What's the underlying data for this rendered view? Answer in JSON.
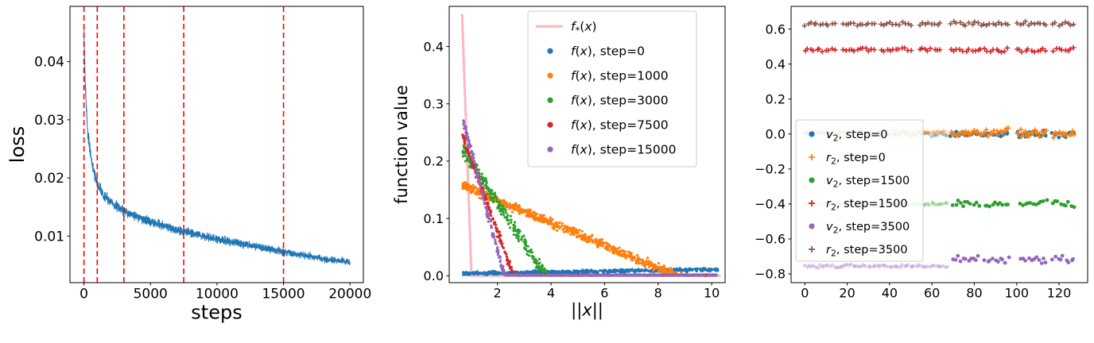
{
  "figure": {
    "background": "#ffffff"
  },
  "palette": {
    "blue": "#1f77b4",
    "orange": "#ff7f0e",
    "green": "#2ca02c",
    "red": "#d62728",
    "purple": "#9467bd",
    "brown": "#8c564b",
    "pink": "#ffb6c1",
    "vline_red": "#ff0000"
  },
  "chart_data": [
    {
      "type": "line",
      "name": "loss-vs-steps",
      "title": "",
      "xlabel": "steps",
      "ylabel": "loss",
      "xlim": [
        -1050,
        21000
      ],
      "ylim": [
        0.002,
        0.0495
      ],
      "grid": false,
      "xticks": {
        "values": [
          0,
          5000,
          10000,
          15000,
          20000
        ],
        "labels": [
          "0",
          "5000",
          "10000",
          "15000",
          "20000"
        ]
      },
      "yticks": {
        "values": [
          0.01,
          0.02,
          0.03,
          0.04
        ],
        "labels": [
          "0.01",
          "0.02",
          "0.03",
          "0.04"
        ]
      },
      "series": [
        {
          "kind": "noisy-line",
          "name": "training-loss",
          "color": "#1f77b4",
          "width": 1.0,
          "n": 2200,
          "noise_base": 0.0005,
          "noise_rel": 0.035,
          "keypoints": [
            [
              0,
              0.047
            ],
            [
              100,
              0.0355
            ],
            [
              300,
              0.0275
            ],
            [
              600,
              0.0225
            ],
            [
              1000,
              0.0188
            ],
            [
              1500,
              0.017
            ],
            [
              2000,
              0.0159
            ],
            [
              3000,
              0.0143
            ],
            [
              4000,
              0.0133
            ],
            [
              5000,
              0.0125
            ],
            [
              6000,
              0.0118
            ],
            [
              7500,
              0.0108
            ],
            [
              9000,
              0.01
            ],
            [
              10000,
              0.0095
            ],
            [
              12000,
              0.0086
            ],
            [
              14000,
              0.0077
            ],
            [
              15000,
              0.0073
            ],
            [
              16000,
              0.0069
            ],
            [
              18000,
              0.0061
            ],
            [
              20000,
              0.0055
            ]
          ]
        },
        {
          "kind": "vlines",
          "name": "snapshot-steps",
          "color": "#ff0000",
          "dash": [
            7,
            4
          ],
          "width": 1.6,
          "xs": [
            0,
            1000,
            3000,
            7500,
            15000
          ]
        }
      ]
    },
    {
      "type": "scatter",
      "name": "function-value-vs-norm",
      "title": "",
      "xlabel": "||x||",
      "ylabel": "function value",
      "xlim": [
        0.2,
        10.5
      ],
      "ylim": [
        -0.012,
        0.47
      ],
      "grid": false,
      "xticks": {
        "values": [
          2,
          4,
          6,
          8,
          10
        ],
        "labels": [
          "2",
          "4",
          "6",
          "8",
          "10"
        ]
      },
      "yticks": {
        "values": [
          0.0,
          0.1,
          0.2,
          0.3,
          0.4
        ],
        "labels": [
          "0.0",
          "0.1",
          "0.2",
          "0.3",
          "0.4"
        ]
      },
      "series": [
        {
          "kind": "line",
          "name": "f-star",
          "color": "#ffb6c1",
          "width": 3,
          "points": [
            [
              0.68,
              0.455
            ],
            [
              1.03,
              0.0
            ],
            [
              10.3,
              0.0
            ]
          ]
        },
        {
          "kind": "ramp-scatter",
          "name": "f-step-0",
          "color": "#1f77b4",
          "x0": 0.7,
          "x1": 10.25,
          "y0": 0.004,
          "y1": 0.011,
          "noise": 0.0016,
          "n": 650,
          "r": 1.6,
          "bias": 1.1
        },
        {
          "kind": "ramp-scatter",
          "name": "f-step-1000",
          "color": "#ff7f0e",
          "x0": 0.7,
          "x1": 10.2,
          "y0": 0.157,
          "y1": -0.0295,
          "noise": 0.0045,
          "n": 800,
          "r": 1.6,
          "bias": 1.15
        },
        {
          "kind": "ramp-scatter",
          "name": "f-step-3000",
          "color": "#2ca02c",
          "x0": 0.7,
          "x1": 10.2,
          "y0": 0.22,
          "y1": -0.455,
          "noise": 0.007,
          "n": 650,
          "r": 1.6,
          "bias": 1.2
        },
        {
          "kind": "ramp-scatter",
          "name": "f-step-7500",
          "color": "#d62728",
          "x0": 0.7,
          "x1": 10.2,
          "y0": 0.245,
          "y1": -0.98,
          "noise": 0.005,
          "n": 600,
          "r": 1.6,
          "bias": 1.2
        },
        {
          "kind": "ramp-scatter",
          "name": "f-step-15000",
          "color": "#9467bd",
          "x0": 0.72,
          "x1": 10.2,
          "y0": 0.27,
          "y1": -1.4,
          "noise": 0.005,
          "n": 600,
          "r": 1.6,
          "bias": 1.2
        }
      ],
      "legend": {
        "position": "upper right",
        "entries": [
          {
            "marker": "line",
            "color": "#ffb6c1",
            "label": "f*(x)"
          },
          {
            "marker": "dot",
            "color": "#1f77b4",
            "label": "f(x), step=0"
          },
          {
            "marker": "dot",
            "color": "#ff7f0e",
            "label": "f(x), step=1000"
          },
          {
            "marker": "dot",
            "color": "#2ca02c",
            "label": "f(x), step=3000"
          },
          {
            "marker": "dot",
            "color": "#d62728",
            "label": "f(x), step=7500"
          },
          {
            "marker": "dot",
            "color": "#9467bd",
            "label": "f(x), step=15000"
          }
        ]
      }
    },
    {
      "type": "scatter",
      "name": "v2-r2-per-coordinate",
      "title": "",
      "xlabel": "",
      "ylabel": "",
      "xlim": [
        -6.5,
        133.5
      ],
      "ylim": [
        -0.85,
        0.73
      ],
      "grid": false,
      "xticks": {
        "values": [
          0,
          20,
          40,
          60,
          80,
          100,
          120
        ],
        "labels": [
          "0",
          "20",
          "40",
          "60",
          "80",
          "100",
          "120"
        ]
      },
      "yticks": {
        "values": [
          -0.8,
          -0.6,
          -0.4,
          -0.2,
          0.0,
          0.2,
          0.4,
          0.6
        ],
        "labels": [
          "−0.8",
          "−0.6",
          "−0.4",
          "−0.2",
          "0.0",
          "0.2",
          "0.4",
          "0.6"
        ]
      },
      "series": [
        {
          "kind": "cluster-scatter",
          "name": "r2-step-3500",
          "marker": "plus",
          "color": "#8c564b",
          "y": 0.63,
          "jy": 0.007,
          "spacing": 1.4,
          "alpha": 1,
          "clusters": [
            [
              0,
              14
            ],
            [
              18,
              33
            ],
            [
              36,
              50
            ],
            [
              54,
              64
            ],
            [
              69,
              96
            ],
            [
              100,
              114
            ],
            [
              117,
              127
            ]
          ]
        },
        {
          "kind": "cluster-scatter",
          "name": "r2-step-1500",
          "marker": "plus",
          "color": "#d62728",
          "y": 0.48,
          "jy": 0.007,
          "spacing": 1.4,
          "alpha": 1,
          "clusters": [
            [
              0,
              14
            ],
            [
              18,
              33
            ],
            [
              36,
              50
            ],
            [
              54,
              64
            ],
            [
              69,
              96
            ],
            [
              100,
              114
            ],
            [
              117,
              127
            ]
          ]
        },
        {
          "kind": "cluster-scatter",
          "name": "v2-step-0-early",
          "marker": "dot",
          "color": "#1f77b4",
          "y": 0.0,
          "jy": 0.007,
          "spacing": 1.0,
          "alpha": 0.35,
          "clusters": [
            [
              0,
              67
            ]
          ]
        },
        {
          "kind": "cluster-scatter",
          "name": "r2-step-0-early",
          "marker": "plus",
          "color": "#ff7f0e",
          "y": 0.01,
          "jy": 0.008,
          "spacing": 1.0,
          "alpha": 0.4,
          "clusters": [
            [
              0,
              67
            ]
          ]
        },
        {
          "kind": "cluster-scatter",
          "name": "v2-step-1500-early",
          "marker": "dot",
          "color": "#2ca02c",
          "y": -0.4,
          "jy": 0.006,
          "spacing": 1.0,
          "alpha": 0.3,
          "clusters": [
            [
              0,
              67
            ]
          ]
        },
        {
          "kind": "cluster-scatter",
          "name": "v2-step-3500-early",
          "marker": "dot",
          "color": "#9467bd",
          "y": -0.755,
          "jy": 0.006,
          "spacing": 1.0,
          "alpha": 0.3,
          "clusters": [
            [
              0,
              67
            ]
          ]
        },
        {
          "kind": "cluster-scatter",
          "name": "v2-step-0",
          "marker": "dot",
          "color": "#1f77b4",
          "y": -0.002,
          "jy": 0.01,
          "spacing": 0.8,
          "alpha": 1,
          "clusters": [
            [
              69,
              96
            ],
            [
              100,
              114
            ],
            [
              117,
              127
            ]
          ]
        },
        {
          "kind": "cluster-scatter",
          "name": "r2-step-0",
          "marker": "plus",
          "color": "#ff7f0e",
          "y": 0.006,
          "jy": 0.012,
          "spacing": 0.8,
          "alpha": 1,
          "clusters": [
            [
              69,
              96
            ],
            [
              100,
              114
            ],
            [
              117,
              127
            ]
          ]
        },
        {
          "kind": "cluster-scatter",
          "name": "v2-step-1500",
          "marker": "dot",
          "color": "#2ca02c",
          "y": -0.4,
          "jy": 0.013,
          "spacing": 1.2,
          "alpha": 1,
          "clusters": [
            [
              70,
              82
            ],
            [
              85,
              96
            ],
            [
              102,
              114
            ],
            [
              117,
              127
            ]
          ]
        },
        {
          "kind": "cluster-scatter",
          "name": "v2-step-3500",
          "marker": "dot",
          "color": "#9467bd",
          "y": -0.72,
          "jy": 0.013,
          "spacing": 1.2,
          "alpha": 1,
          "clusters": [
            [
              70,
              82
            ],
            [
              85,
              96
            ],
            [
              102,
              114
            ],
            [
              117,
              127
            ]
          ]
        }
      ],
      "legend": {
        "position": "center left",
        "entries": [
          {
            "marker": "dot",
            "color": "#1f77b4",
            "label": "v2, step=0"
          },
          {
            "marker": "plus",
            "color": "#ff7f0e",
            "label": "r2, step=0"
          },
          {
            "marker": "dot",
            "color": "#2ca02c",
            "label": "v2, step=1500"
          },
          {
            "marker": "plus",
            "color": "#d62728",
            "label": "r2, step=1500"
          },
          {
            "marker": "dot",
            "color": "#9467bd",
            "label": "v2, step=3500"
          },
          {
            "marker": "plus",
            "color": "#8c564b",
            "label": "r2, step=3500"
          }
        ]
      }
    }
  ]
}
